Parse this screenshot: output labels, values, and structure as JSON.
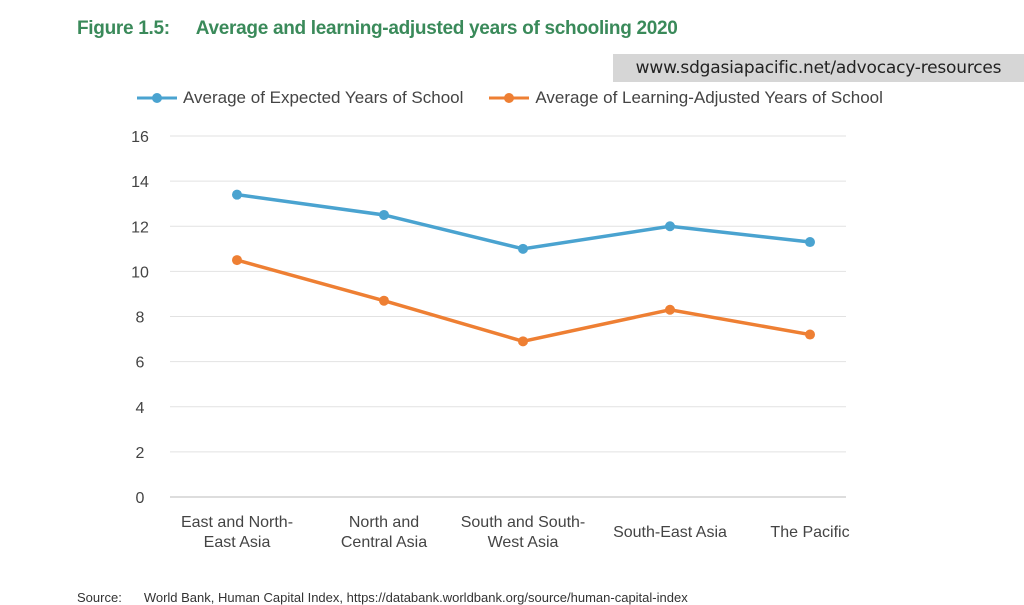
{
  "figure": {
    "number": "Figure 1.5:",
    "title": "Average and learning-adjusted years of schooling 2020"
  },
  "watermark": "www.sdgasiapacific.net/advocacy-resources",
  "source": {
    "label": "Source:",
    "text": "World Bank, Human Capital Index, https://databank.worldbank.org/source/human-capital-index"
  },
  "chart_data": {
    "type": "line",
    "title": "Average and learning-adjusted years of schooling 2020",
    "xlabel": "",
    "ylabel": "",
    "categories": [
      [
        "East and North-",
        "East Asia"
      ],
      [
        "North and",
        "Central Asia"
      ],
      [
        "South and South-",
        "West Asia"
      ],
      [
        "South-East Asia"
      ],
      [
        "The Pacific"
      ]
    ],
    "ylim": [
      0,
      16
    ],
    "yticks": [
      "0",
      "2",
      "4",
      "6",
      "8",
      "10",
      "12",
      "14",
      "16"
    ],
    "grid": true,
    "legend": "top",
    "series": [
      {
        "name": "Average of Expected Years of School",
        "color": "#4aa3d0",
        "values": [
          13.4,
          12.5,
          11.0,
          12.0,
          11.3
        ]
      },
      {
        "name": "Average of Learning-Adjusted Years of School",
        "color": "#ee7f33",
        "values": [
          10.5,
          8.7,
          6.9,
          8.3,
          7.2
        ]
      }
    ]
  }
}
